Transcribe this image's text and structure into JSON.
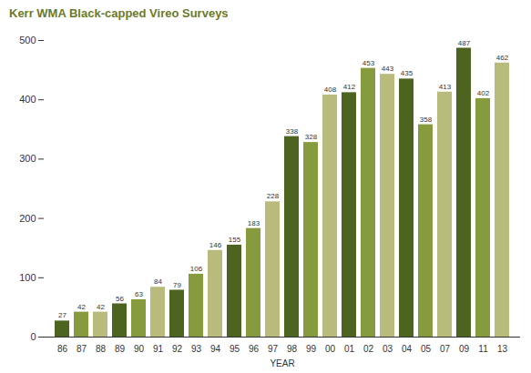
{
  "chart_data": {
    "type": "bar",
    "title": "Kerr WMA Black-capped Vireo Surveys",
    "x_label": "YEAR",
    "categories": [
      "86",
      "87",
      "88",
      "89",
      "90",
      "91",
      "92",
      "93",
      "94",
      "95",
      "96",
      "97",
      "98",
      "99",
      "00",
      "01",
      "02",
      "03",
      "04",
      "05",
      "07",
      "09",
      "11",
      "13"
    ],
    "values": [
      27,
      42,
      42,
      56,
      63,
      84,
      79,
      106,
      146,
      155,
      183,
      228,
      338,
      328,
      408,
      412,
      453,
      443,
      435,
      358,
      413,
      487,
      402,
      462
    ],
    "colors": [
      "#4d6320",
      "#869a3e",
      "#b8bb7c",
      "#4d6320",
      "#869a3e",
      "#b8bb7c",
      "#4d6320",
      "#869a3e",
      "#b8bb7c",
      "#4d6320",
      "#869a3e",
      "#b8bb7c",
      "#4d6320",
      "#869a3e",
      "#b8bb7c",
      "#4d6320",
      "#869a3e",
      "#b8bb7c",
      "#4d6320",
      "#869a3e",
      "#b8bb7c",
      "#4d6320",
      "#869a3e",
      "#b8bb7c"
    ],
    "ylim": [
      0,
      500
    ],
    "yticks": [
      0,
      100,
      200,
      300,
      400,
      500
    ],
    "data_labels": true,
    "grid": false
  }
}
